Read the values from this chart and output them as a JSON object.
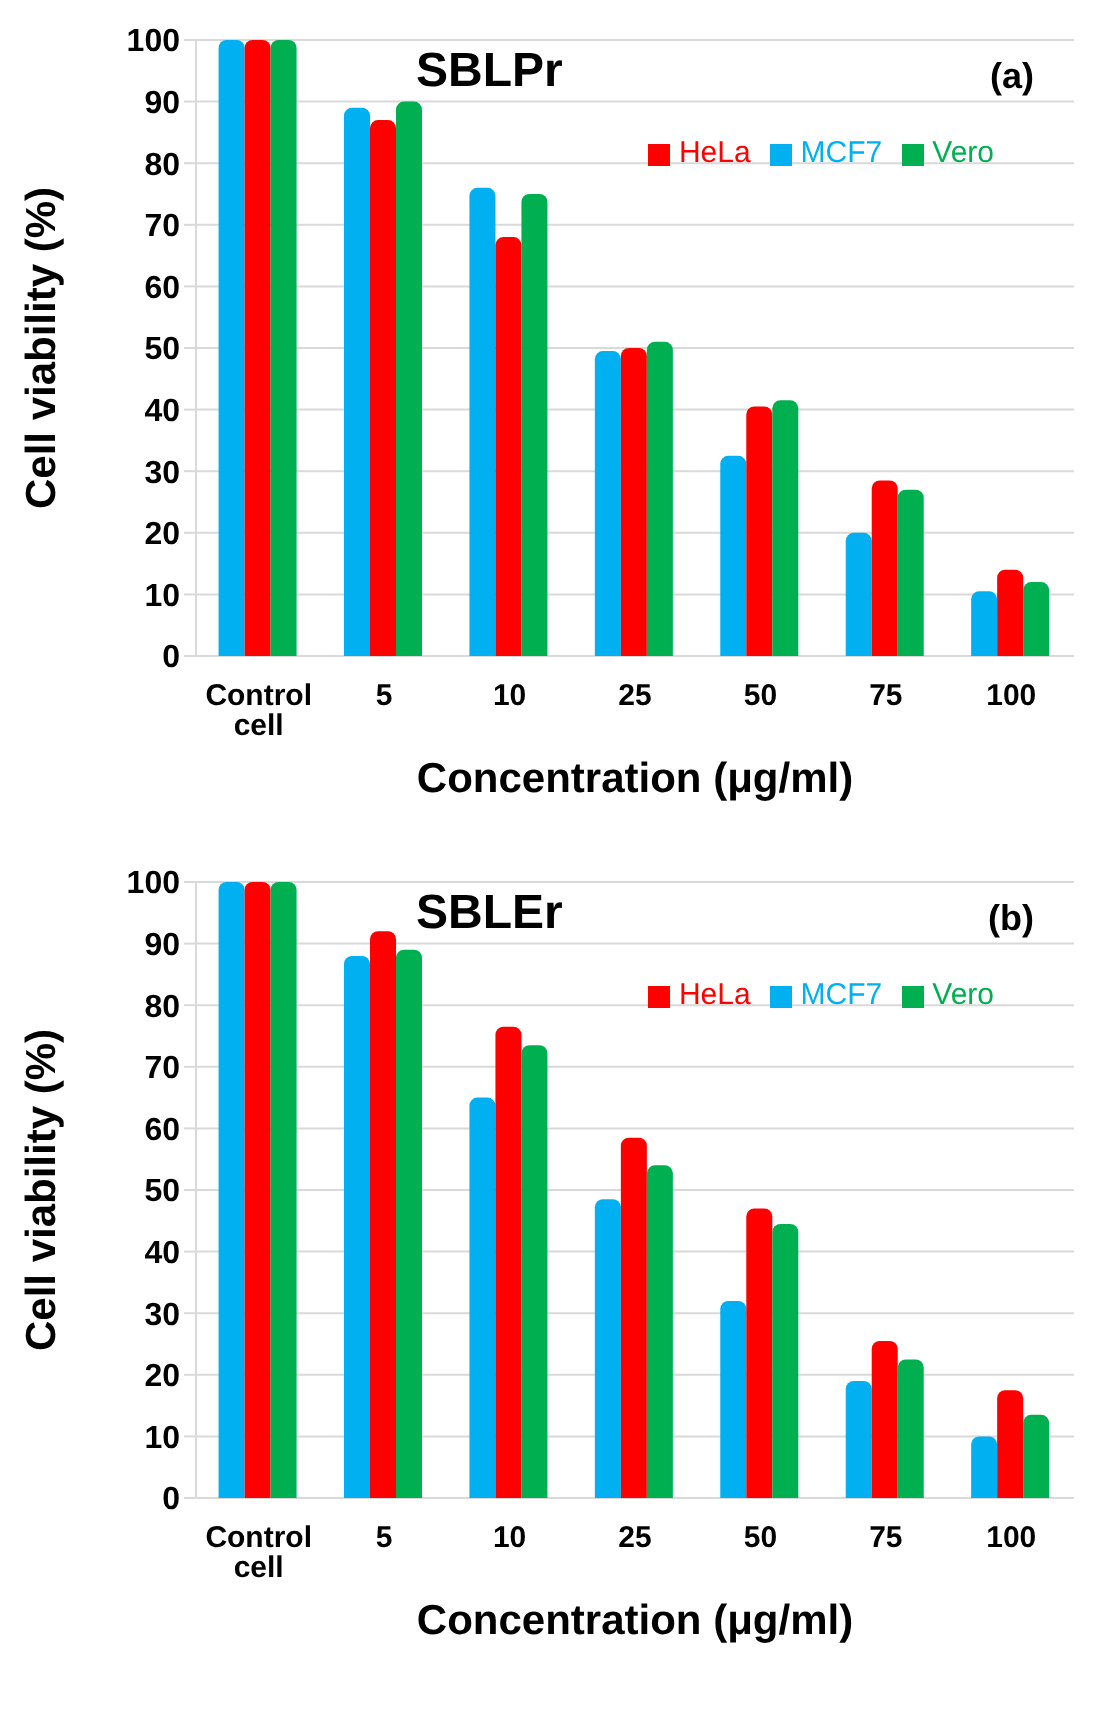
{
  "chart_data": [
    {
      "type": "bar",
      "title": "SBLPr",
      "annotations": [
        "(a)"
      ],
      "xlabel": "Concentration (μg/ml)",
      "ylabel": "Cell viability (%)",
      "categories": [
        "Control cell",
        "5",
        "10",
        "25",
        "50",
        "75",
        "100"
      ],
      "series": [
        {
          "name": "MCF7",
          "color": "#00b0f0",
          "values": [
            100,
            89,
            76,
            49.5,
            32.5,
            20,
            10.5
          ]
        },
        {
          "name": "HeLa",
          "color": "#ff0000",
          "values": [
            100,
            87,
            68,
            50,
            40.5,
            28.5,
            14
          ]
        },
        {
          "name": "Vero",
          "color": "#00b050",
          "values": [
            100,
            90,
            75,
            51,
            41.5,
            27,
            12
          ]
        }
      ],
      "ylim": [
        0,
        100
      ],
      "yticks": [
        0,
        10,
        20,
        30,
        40,
        50,
        60,
        70,
        80,
        90,
        100
      ],
      "grid": "y",
      "legend": "top right"
    },
    {
      "type": "bar",
      "title": "SBLEr",
      "annotations": [
        "(b)"
      ],
      "xlabel": "Concentration (μg/ml)",
      "ylabel": "Cell viability (%)",
      "categories": [
        "Control cell",
        "5",
        "10",
        "25",
        "50",
        "75",
        "100"
      ],
      "series": [
        {
          "name": "MCF7",
          "color": "#00b0f0",
          "values": [
            100,
            88,
            65,
            48.5,
            32,
            19,
            10
          ]
        },
        {
          "name": "HeLa",
          "color": "#ff0000",
          "values": [
            100,
            92,
            76.5,
            58.5,
            47,
            25.5,
            17.5
          ]
        },
        {
          "name": "Vero",
          "color": "#00b050",
          "values": [
            100,
            89,
            73.5,
            54,
            44.5,
            22.5,
            13.5
          ]
        }
      ],
      "ylim": [
        0,
        100
      ],
      "yticks": [
        0,
        10,
        20,
        30,
        40,
        50,
        60,
        70,
        80,
        90,
        100
      ],
      "grid": "y",
      "legend": "top right"
    }
  ]
}
